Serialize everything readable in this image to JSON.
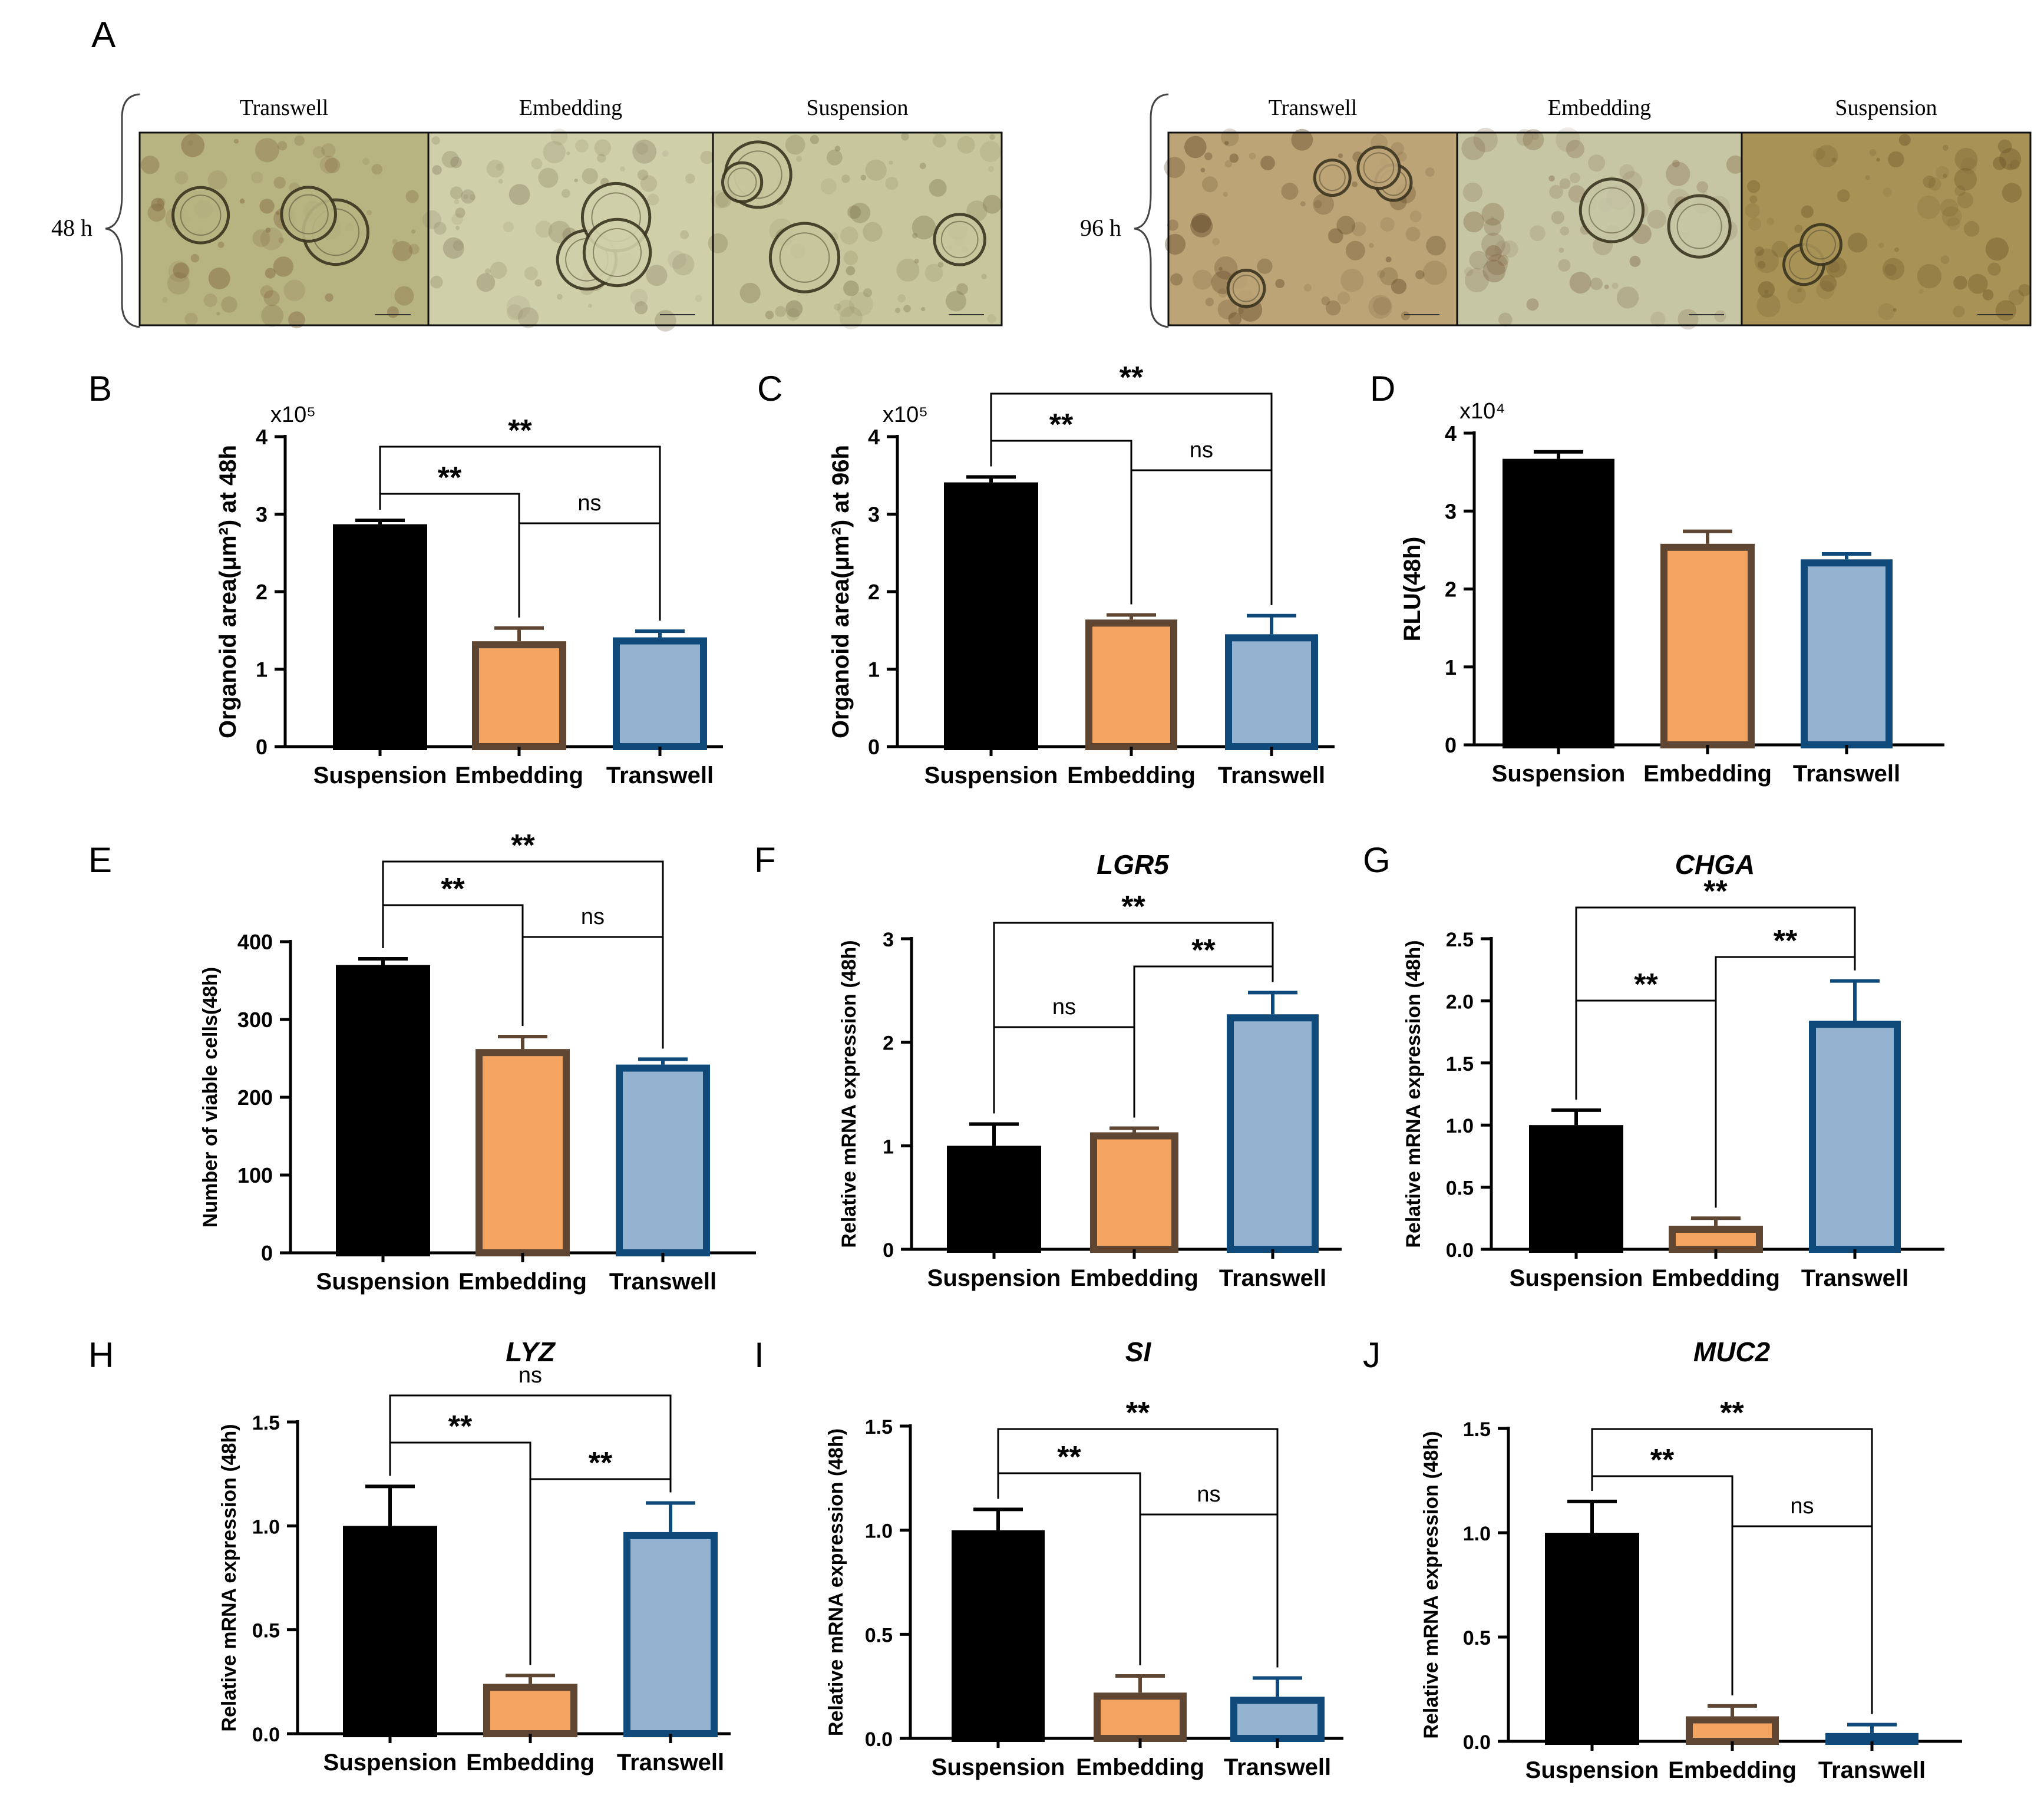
{
  "figure_title": "",
  "panel_a": {
    "letter": "A",
    "groups": [
      {
        "time_label": "48 h",
        "images": [
          {
            "label": "Transwell",
            "tone": "#b7b482",
            "spot": "#7a5a35"
          },
          {
            "label": "Embedding",
            "tone": "#cfcfa9",
            "spot": "#8a7f60"
          },
          {
            "label": "Suspension",
            "tone": "#c7c69c",
            "spot": "#7f7550"
          }
        ]
      },
      {
        "time_label": "96 h",
        "images": [
          {
            "label": "Transwell",
            "tone": "#bda477",
            "spot": "#5c4424"
          },
          {
            "label": "Embedding",
            "tone": "#c6c6a5",
            "spot": "#7d6040"
          },
          {
            "label": "Suspension",
            "tone": "#a89255",
            "spot": "#6a5226"
          }
        ]
      }
    ]
  },
  "colors": {
    "suspension": "#000000",
    "embedding": "#f4a460",
    "embedding_edge": "#5e4632",
    "transwell": "#94b3d0",
    "transwell_edge": "#0f4a7a"
  },
  "chart_data": [
    {
      "id": "B",
      "letter": "B",
      "type": "bar",
      "title": "",
      "ylabel": "Organoid area(μm²) at 48h",
      "multiplier": "x10⁵",
      "ylim": [
        0,
        4
      ],
      "yticks": [
        "0",
        "1",
        "2",
        "3",
        "4"
      ],
      "categories": [
        "Suspension",
        "Embedding",
        "Transwell"
      ],
      "values": [
        2.87,
        1.36,
        1.41
      ],
      "errors": [
        0.05,
        0.17,
        0.08
      ],
      "brackets": [
        {
          "from": 0,
          "to": 1,
          "label": "**"
        },
        {
          "from": 1,
          "to": 2,
          "label": "ns"
        },
        {
          "from": 0,
          "to": 2,
          "label": "**"
        }
      ]
    },
    {
      "id": "C",
      "letter": "C",
      "type": "bar",
      "title": "",
      "ylabel": "Organoid area(μm²) at 96h",
      "multiplier": "x10⁵",
      "ylim": [
        0,
        4
      ],
      "yticks": [
        "0",
        "1",
        "2",
        "3",
        "4"
      ],
      "categories": [
        "Suspension",
        "Embedding",
        "Transwell"
      ],
      "values": [
        3.41,
        1.64,
        1.45
      ],
      "errors": [
        0.07,
        0.06,
        0.24
      ],
      "brackets": [
        {
          "from": 0,
          "to": 1,
          "label": "**"
        },
        {
          "from": 1,
          "to": 2,
          "label": "ns"
        },
        {
          "from": 0,
          "to": 2,
          "label": "**"
        }
      ]
    },
    {
      "id": "D",
      "letter": "D",
      "type": "bar",
      "title": "",
      "ylabel": "RLU(48h)",
      "multiplier": "x10⁴",
      "ylim": [
        0,
        4
      ],
      "yticks": [
        "0",
        "1",
        "2",
        "3",
        "4"
      ],
      "categories": [
        "Suspension",
        "Embedding",
        "Transwell"
      ],
      "values": [
        3.67,
        2.58,
        2.38
      ],
      "errors": [
        0.09,
        0.16,
        0.07
      ],
      "brackets": []
    },
    {
      "id": "E",
      "letter": "E",
      "type": "bar",
      "title": "",
      "ylabel": "Number of viable cells(48h)",
      "multiplier": "",
      "ylim": [
        0,
        400
      ],
      "yticks": [
        "0",
        "100",
        "200",
        "300",
        "400"
      ],
      "categories": [
        "Suspension",
        "Embedding",
        "Transwell"
      ],
      "values": [
        370,
        262,
        242
      ],
      "errors": [
        8,
        16,
        7
      ],
      "brackets": [
        {
          "from": 0,
          "to": 1,
          "label": "**"
        },
        {
          "from": 1,
          "to": 2,
          "label": "ns"
        },
        {
          "from": 0,
          "to": 2,
          "label": "**"
        }
      ]
    },
    {
      "id": "F",
      "letter": "F",
      "type": "bar",
      "title": "LGR5",
      "ylabel": "Relative mRNA expression (48h)",
      "multiplier": "",
      "ylim": [
        0,
        3
      ],
      "yticks": [
        "0",
        "1",
        "2",
        "3"
      ],
      "categories": [
        "Suspension",
        "Embedding",
        "Transwell"
      ],
      "values": [
        1.0,
        1.13,
        2.27
      ],
      "errors": [
        0.21,
        0.04,
        0.21
      ],
      "brackets": [
        {
          "from": 0,
          "to": 1,
          "label": "ns"
        },
        {
          "from": 1,
          "to": 2,
          "label": "**"
        },
        {
          "from": 0,
          "to": 2,
          "label": "**"
        }
      ]
    },
    {
      "id": "G",
      "letter": "G",
      "type": "bar",
      "title": "CHGA",
      "ylabel": "Relative mRNA expression (48h)",
      "multiplier": "",
      "ylim": [
        0,
        2.5
      ],
      "yticks": [
        "0.0",
        "0.5",
        "1.0",
        "1.5",
        "2.0",
        "2.5"
      ],
      "categories": [
        "Suspension",
        "Embedding",
        "Transwell"
      ],
      "values": [
        1.0,
        0.19,
        1.84
      ],
      "errors": [
        0.12,
        0.06,
        0.32
      ],
      "brackets": [
        {
          "from": 0,
          "to": 1,
          "label": "**"
        },
        {
          "from": 1,
          "to": 2,
          "label": "**"
        },
        {
          "from": 0,
          "to": 2,
          "label": "**"
        }
      ]
    },
    {
      "id": "H",
      "letter": "H",
      "type": "bar",
      "title": "LYZ",
      "ylabel": "Relative mRNA expression (48h)",
      "multiplier": "",
      "ylim": [
        0,
        1.5
      ],
      "yticks": [
        "0.0",
        "0.5",
        "1.0",
        "1.5"
      ],
      "categories": [
        "Suspension",
        "Embedding",
        "Transwell"
      ],
      "values": [
        1.0,
        0.24,
        0.97
      ],
      "errors": [
        0.19,
        0.04,
        0.14
      ],
      "brackets": [
        {
          "from": 0,
          "to": 1,
          "label": "**"
        },
        {
          "from": 1,
          "to": 2,
          "label": "**"
        },
        {
          "from": 0,
          "to": 2,
          "label": "ns"
        }
      ]
    },
    {
      "id": "I",
      "letter": "I",
      "type": "bar",
      "title": "SI",
      "ylabel": "Relative mRNA expression (48h)",
      "multiplier": "",
      "ylim": [
        0,
        1.5
      ],
      "yticks": [
        "0.0",
        "0.5",
        "1.0",
        "1.5"
      ],
      "categories": [
        "Suspension",
        "Embedding",
        "Transwell"
      ],
      "values": [
        1.0,
        0.22,
        0.2
      ],
      "errors": [
        0.1,
        0.08,
        0.09
      ],
      "brackets": [
        {
          "from": 0,
          "to": 1,
          "label": "**"
        },
        {
          "from": 1,
          "to": 2,
          "label": "ns"
        },
        {
          "from": 0,
          "to": 2,
          "label": "**"
        }
      ]
    },
    {
      "id": "J",
      "letter": "J",
      "type": "bar",
      "title": "MUC2",
      "ylabel": "Relative mRNA expression (48h)",
      "multiplier": "",
      "ylim": [
        0,
        1.5
      ],
      "yticks": [
        "0.0",
        "0.5",
        "1.0",
        "1.5"
      ],
      "categories": [
        "Suspension",
        "Embedding",
        "Transwell"
      ],
      "values": [
        1.0,
        0.12,
        0.04
      ],
      "errors": [
        0.15,
        0.05,
        0.04
      ],
      "brackets": [
        {
          "from": 0,
          "to": 1,
          "label": "**"
        },
        {
          "from": 1,
          "to": 2,
          "label": "ns"
        },
        {
          "from": 0,
          "to": 2,
          "label": "**"
        }
      ]
    }
  ]
}
